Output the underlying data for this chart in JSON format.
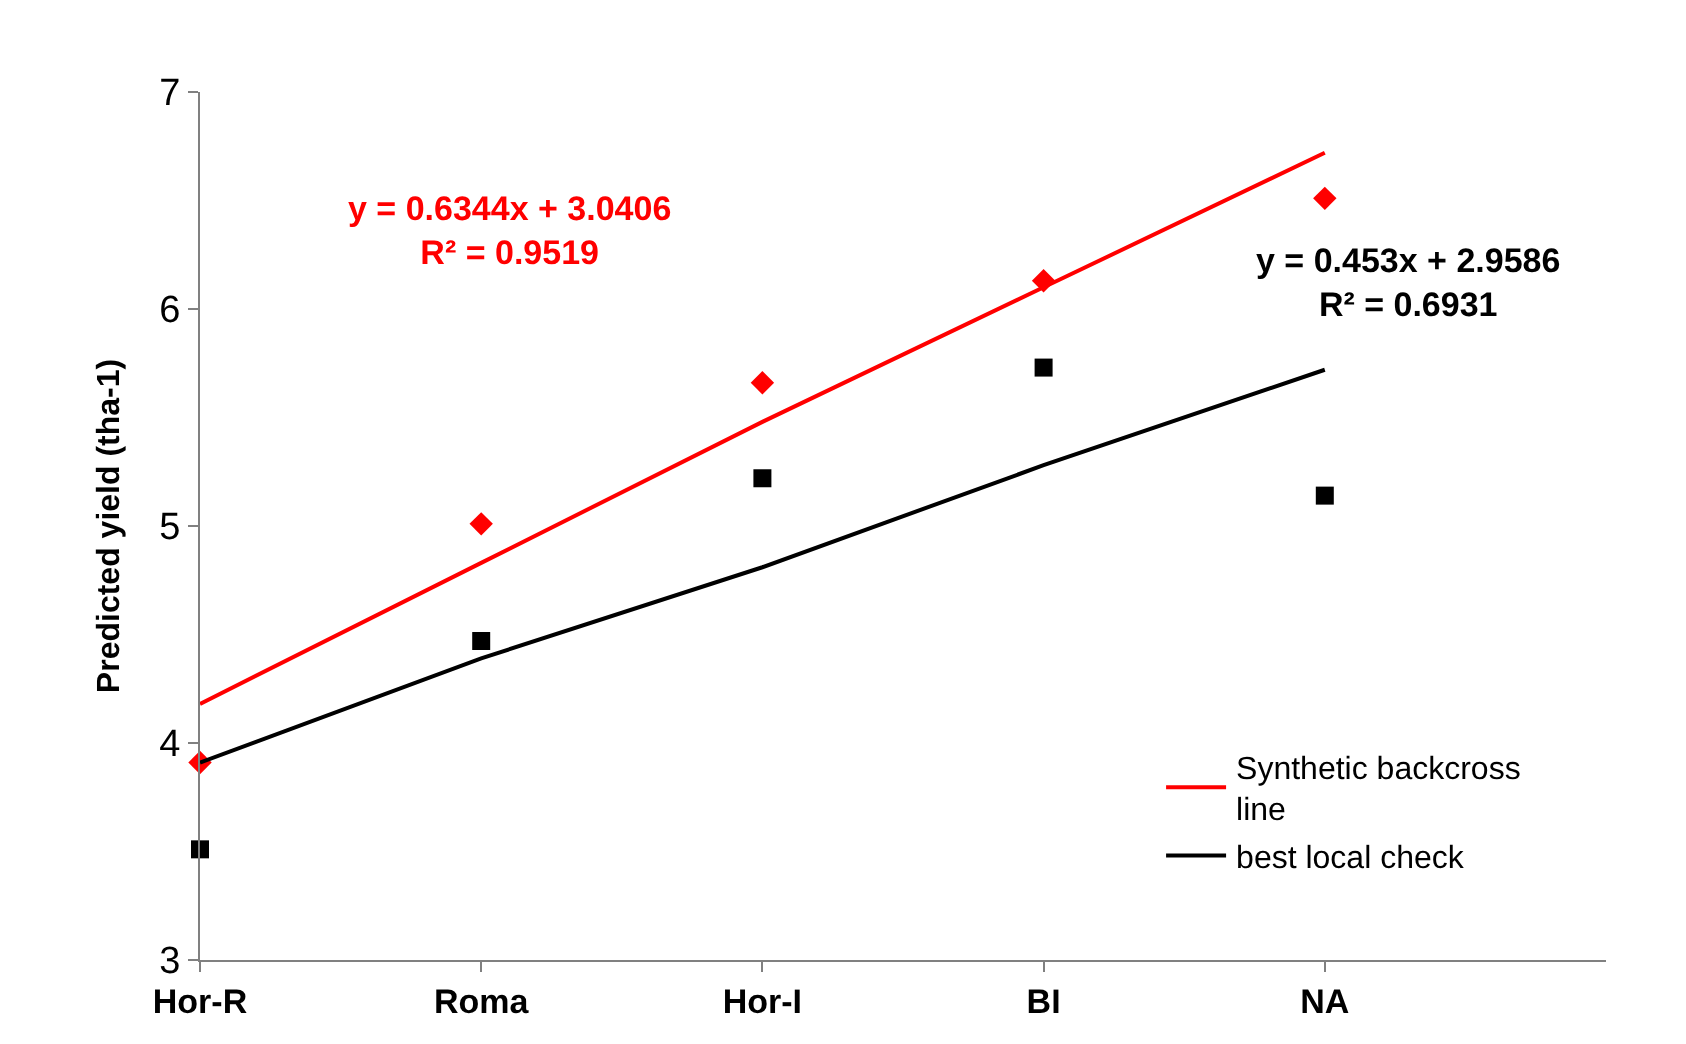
{
  "chart_data": {
    "type": "scatter",
    "ylabel": "Predicted yield (tha-1)",
    "categories": [
      "Hor-R",
      "Roma",
      "Hor-I",
      "BI",
      "NA"
    ],
    "series": [
      {
        "color": "#ff0000",
        "marker": "diamond",
        "values": [
          3.91,
          5.01,
          5.66,
          6.13,
          6.51
        ]
      },
      {
        "color": "#000000",
        "marker": "square",
        "values": [
          3.51,
          4.47,
          5.22,
          5.73,
          5.14
        ]
      },
      {
        "type": "line",
        "name": "Synthetic backcross line",
        "color": "#ff0000",
        "marker": "none",
        "values": [
          4.18,
          4.83,
          5.48,
          6.1,
          6.72
        ]
      },
      {
        "type": "line",
        "name": "best local check",
        "color": "#000000",
        "marker": "none",
        "values": [
          3.91,
          4.39,
          4.81,
          5.28,
          5.72
        ]
      }
    ],
    "annotations": [
      "y = 0.6344x + 3.0406\nR² = 0.9519",
      "y = 0.453x + 2.9586\nR² = 0.6931"
    ],
    "ylim": [
      3,
      7
    ],
    "yticks": [
      3,
      4,
      5,
      6,
      7
    ],
    "legend": "bottom right"
  }
}
